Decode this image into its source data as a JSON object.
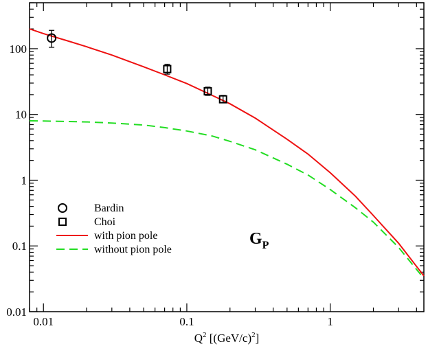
{
  "chart_data": {
    "type": "line",
    "title": "",
    "xlabel": "Q² [(GeV/c)²]",
    "ylabel": "",
    "xscale": "log",
    "yscale": "log",
    "xlim": [
      0.008,
      4.5
    ],
    "ylim": [
      0.01,
      500
    ],
    "grid": false,
    "legend_position": "lower-left",
    "x_tick_labels": [
      "0.01",
      "0.1",
      "1"
    ],
    "y_tick_labels": [
      "0.01",
      "0.1",
      "1",
      "10",
      "100"
    ],
    "annotation": {
      "main": "G",
      "subscript": "P"
    },
    "series": [
      {
        "name": "Bardin",
        "kind": "scatter",
        "marker": "circle",
        "color": "#000000",
        "points": [
          {
            "x": 0.0114,
            "y": 145,
            "ylow": 105,
            "yhigh": 190
          }
        ]
      },
      {
        "name": "Choi",
        "kind": "scatter",
        "marker": "square",
        "color": "#000000",
        "points": [
          {
            "x": 0.073,
            "y": 49,
            "ylow": 41,
            "yhigh": 58
          },
          {
            "x": 0.14,
            "y": 22.5,
            "ylow": 19.5,
            "yhigh": 26
          },
          {
            "x": 0.179,
            "y": 17,
            "ylow": 15,
            "yhigh": 19.5
          }
        ]
      },
      {
        "name": "with pion pole",
        "kind": "line",
        "style": "solid",
        "color": "#ee1111",
        "x": [
          0.008,
          0.01,
          0.015,
          0.02,
          0.03,
          0.05,
          0.07,
          0.1,
          0.15,
          0.2,
          0.3,
          0.5,
          0.7,
          1.0,
          1.5,
          2.0,
          3.0,
          4.5
        ],
        "y": [
          200,
          170,
          130,
          107,
          80,
          53,
          40,
          29.5,
          19.5,
          14.5,
          8.8,
          4.2,
          2.5,
          1.3,
          0.57,
          0.29,
          0.11,
          0.035
        ]
      },
      {
        "name": "without pion pole",
        "kind": "line",
        "style": "dashed",
        "color": "#22dd22",
        "x": [
          0.008,
          0.01,
          0.02,
          0.03,
          0.05,
          0.07,
          0.1,
          0.15,
          0.2,
          0.3,
          0.5,
          0.7,
          1.0,
          1.5,
          2.0,
          3.0,
          4.5
        ],
        "y": [
          8.0,
          7.95,
          7.7,
          7.4,
          6.9,
          6.3,
          5.6,
          4.7,
          3.9,
          2.9,
          1.75,
          1.2,
          0.72,
          0.38,
          0.23,
          0.095,
          0.032
        ]
      }
    ]
  }
}
